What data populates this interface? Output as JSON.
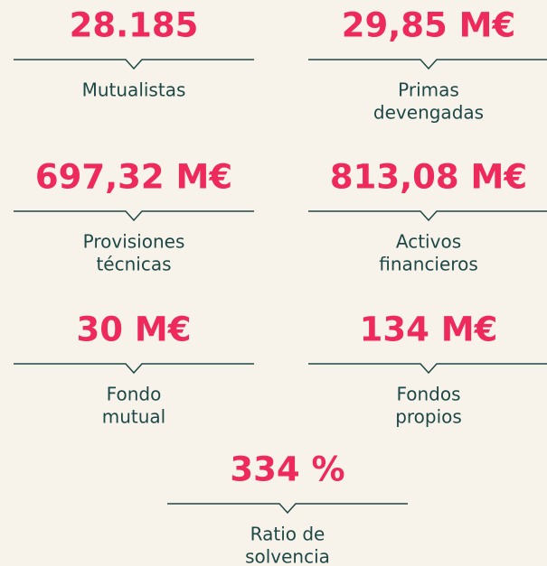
{
  "stats": [
    {
      "value": "28.185",
      "label": [
        "Mutualistas"
      ]
    },
    {
      "value": "29,85 M€",
      "label": [
        "Primas",
        "devengadas"
      ]
    },
    {
      "value": "697,32 M€",
      "label": [
        "Provisiones",
        "técnicas"
      ]
    },
    {
      "value": "813,08 M€",
      "label": [
        "Activos",
        "financieros"
      ]
    },
    {
      "value": "30 M€",
      "label": [
        "Fondo",
        "mutual"
      ]
    },
    {
      "value": "134 M€",
      "label": [
        "Fondos",
        "propios"
      ]
    },
    {
      "value": "334 %",
      "label": [
        "Ratio de",
        "solvencia"
      ]
    }
  ]
}
